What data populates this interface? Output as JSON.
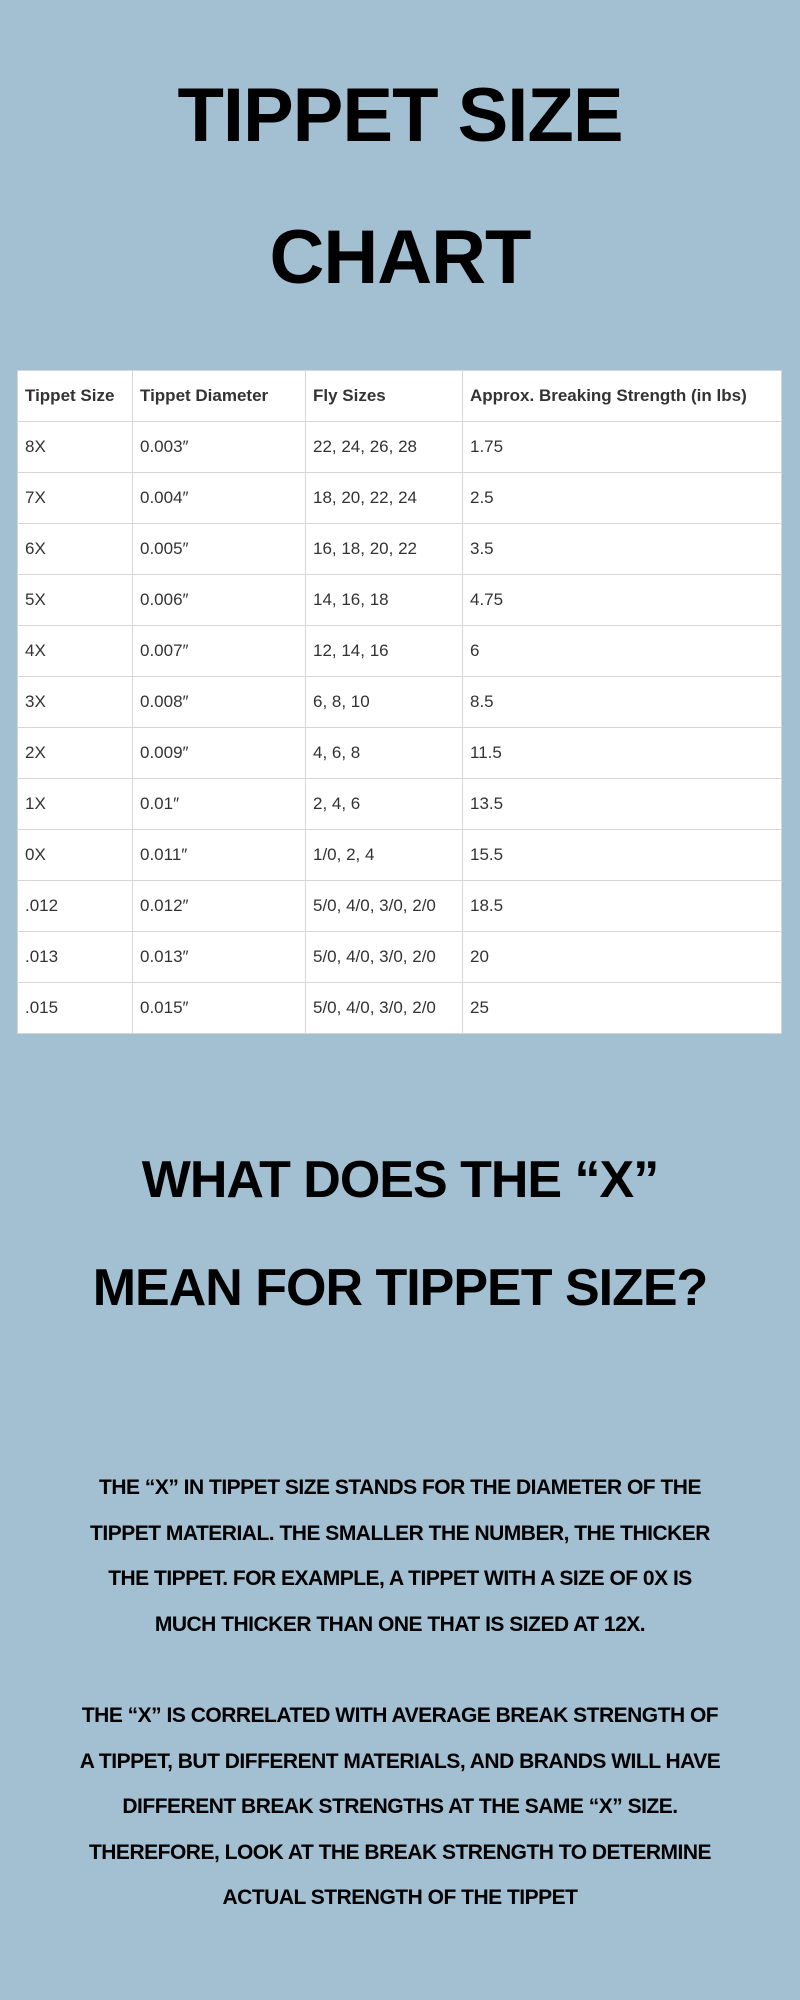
{
  "title": {
    "line1": "Tippet Size",
    "line2": "Chart"
  },
  "table": {
    "headers": [
      "Tippet Size",
      "Tippet Diameter",
      "Fly Sizes",
      "Approx. Breaking Strength (in lbs)"
    ],
    "rows": [
      [
        "8X",
        "0.003″",
        "22, 24, 26, 28",
        "1.75"
      ],
      [
        "7X",
        "0.004″",
        "18, 20, 22, 24",
        "2.5"
      ],
      [
        "6X",
        "0.005″",
        "16, 18, 20, 22",
        "3.5"
      ],
      [
        "5X",
        "0.006″",
        "14, 16, 18",
        "4.75"
      ],
      [
        "4X",
        "0.007″",
        "12, 14, 16",
        "6"
      ],
      [
        "3X",
        "0.008″",
        "6, 8, 10",
        "8.5"
      ],
      [
        "2X",
        "0.009″",
        "4, 6, 8",
        "11.5"
      ],
      [
        "1X",
        "0.01″",
        "2, 4, 6",
        "13.5"
      ],
      [
        "0X",
        "0.011″",
        "1/0, 2, 4",
        "15.5"
      ],
      [
        ".012",
        "0.012″",
        "5/0, 4/0, 3/0, 2/0",
        "18.5"
      ],
      [
        ".013",
        "0.013″",
        "5/0, 4/0, 3/0, 2/0",
        "20"
      ],
      [
        ".015",
        "0.015″",
        "5/0, 4/0, 3/0, 2/0",
        "25"
      ]
    ]
  },
  "heading": {
    "line1": "What does the “X”",
    "line2": "mean for tippet size?"
  },
  "paragraph1": [
    "The “X” in tippet size stands for the diameter of the",
    "tippet material. The smaller the number, the thicker",
    "the tippet. For example, a tippet with a size of 0X is",
    "much thicker than one that is sized at 12X."
  ],
  "paragraph2": [
    "The “X” is correlated with average break strength of",
    "a tippet, but different materials, and brands will have",
    "different break strengths at the same “X” size.",
    "Therefore, look at the break strength to determine",
    "actual strength of the tippet"
  ],
  "colors": {
    "background": "#a3bfd2",
    "table_background": "#ffffff",
    "text": "#000000"
  }
}
